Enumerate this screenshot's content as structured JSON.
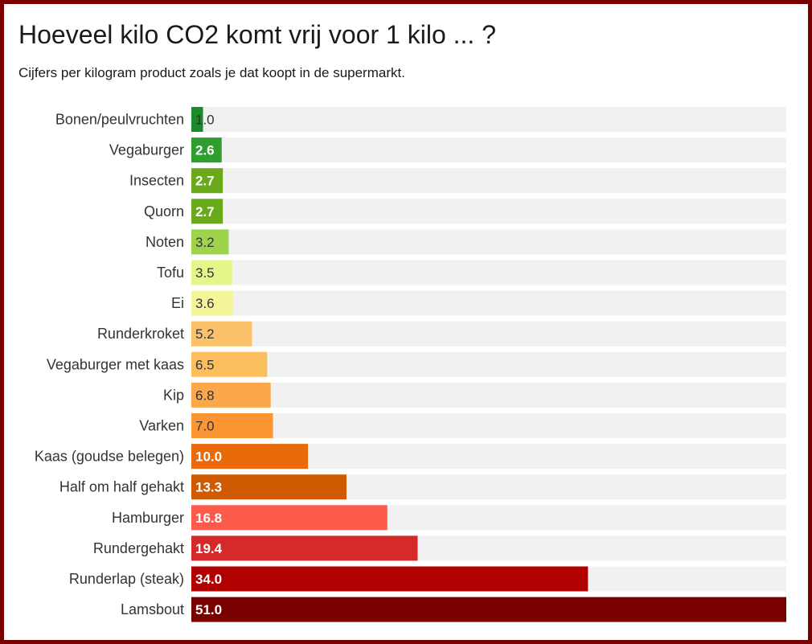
{
  "title": "Hoeveel kilo CO2 komt vrij voor 1 kilo ... ?",
  "subtitle": "Cijfers per kilogram product zoals je dat koopt in de supermarkt.",
  "chart_data": {
    "type": "bar",
    "orientation": "horizontal",
    "title": "Hoeveel kilo CO2 komt vrij voor 1 kilo ... ?",
    "subtitle": "Cijfers per kilogram product zoals je dat koopt in de supermarkt.",
    "xlim": [
      0,
      51
    ],
    "grid": false,
    "categories": [
      "Bonen/peulvruchten",
      "Vegaburger",
      "Insecten",
      "Quorn",
      "Noten",
      "Tofu",
      "Ei",
      "Runderkroket",
      "Vegaburger met kaas",
      "Kip",
      "Varken",
      "Kaas (goudse belegen)",
      "Half om half gehakt",
      "Hamburger",
      "Rundergehakt",
      "Runderlap (steak)",
      "Lamsbout"
    ],
    "values": [
      1.0,
      2.6,
      2.7,
      2.7,
      3.2,
      3.5,
      3.6,
      5.2,
      6.5,
      6.8,
      7.0,
      10.0,
      13.3,
      16.8,
      19.4,
      34.0,
      51.0
    ],
    "value_labels": [
      "1.0",
      "2.6",
      "2.7",
      "2.7",
      "3.2",
      "3.5",
      "3.6",
      "5.2",
      "6.5",
      "6.8",
      "7.0",
      "10.0",
      "13.3",
      "16.8",
      "19.4",
      "34.0",
      "51.0"
    ],
    "colors": [
      "#1a8a2a",
      "#2e9e2e",
      "#6aaa1a",
      "#6aaa1a",
      "#9ed44a",
      "#e6f58a",
      "#f5f59a",
      "#fcc26b",
      "#fcbf5e",
      "#fca84a",
      "#fc9632",
      "#e86a0a",
      "#d05a00",
      "#fc5a4a",
      "#d42a2a",
      "#b00000",
      "#7a0000"
    ],
    "label_colors": [
      "#333333",
      "#ffffff",
      "#ffffff",
      "#ffffff",
      "#333333",
      "#333333",
      "#333333",
      "#333333",
      "#333333",
      "#333333",
      "#333333",
      "#ffffff",
      "#ffffff",
      "#ffffff",
      "#ffffff",
      "#ffffff",
      "#ffffff"
    ],
    "track_color": "#f1f1f1"
  }
}
